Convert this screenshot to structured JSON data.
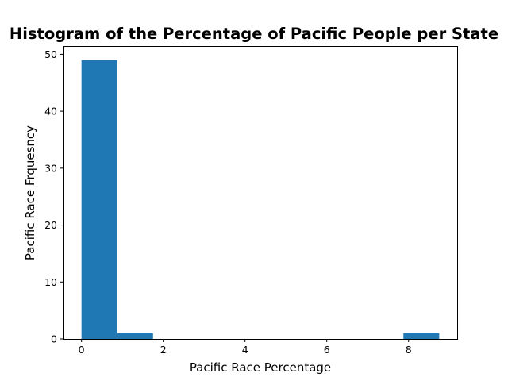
{
  "chart_data": {
    "type": "bar",
    "title": "Histogram of the Percentage of Pacific People per State",
    "xlabel": "Pacific Race Percentage",
    "ylabel": "Pacific Race Frquesncy",
    "xlim": [
      -0.44,
      9.19
    ],
    "ylim": [
      0,
      51.45
    ],
    "xticks": [
      0,
      2,
      4,
      6,
      8
    ],
    "yticks": [
      0,
      10,
      20,
      30,
      40,
      50
    ],
    "bins": [
      {
        "start": 0.0,
        "end": 0.875,
        "count": 49
      },
      {
        "start": 0.875,
        "end": 1.75,
        "count": 1
      },
      {
        "start": 1.75,
        "end": 2.625,
        "count": 0
      },
      {
        "start": 2.625,
        "end": 3.5,
        "count": 0
      },
      {
        "start": 3.5,
        "end": 4.375,
        "count": 0
      },
      {
        "start": 4.375,
        "end": 5.25,
        "count": 0
      },
      {
        "start": 5.25,
        "end": 6.125,
        "count": 0
      },
      {
        "start": 6.125,
        "end": 7.0,
        "count": 0
      },
      {
        "start": 7.0,
        "end": 7.875,
        "count": 0
      },
      {
        "start": 7.875,
        "end": 8.75,
        "count": 1
      }
    ],
    "color": "#1f77b4",
    "grid": false,
    "legend": "none"
  }
}
